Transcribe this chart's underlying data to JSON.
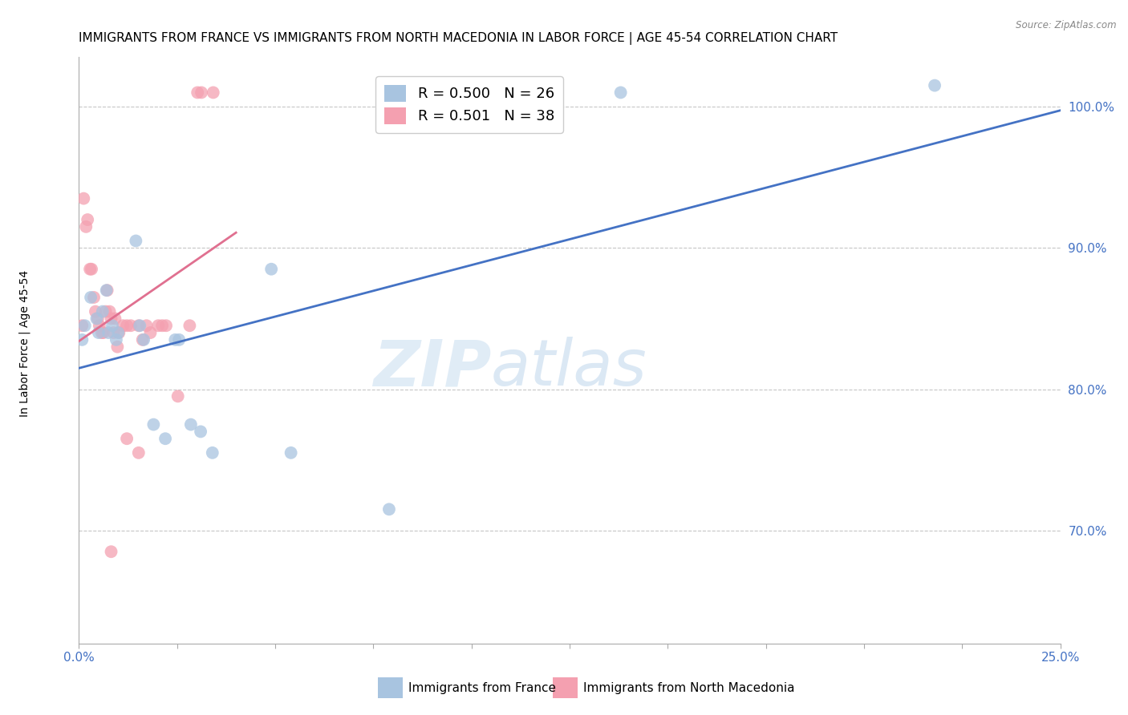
{
  "title": "IMMIGRANTS FROM FRANCE VS IMMIGRANTS FROM NORTH MACEDONIA IN LABOR FORCE | AGE 45-54 CORRELATION CHART",
  "source": "Source: ZipAtlas.com",
  "ylabel": "In Labor Force | Age 45-54",
  "xlim": [
    0.0,
    25.0
  ],
  "ylim": [
    62.0,
    103.5
  ],
  "r_france": 0.5,
  "n_france": 26,
  "r_macedonia": 0.501,
  "n_macedonia": 38,
  "france_color": "#a8c4e0",
  "macedonia_color": "#f4a0b0",
  "france_line_color": "#4472c4",
  "macedonia_line_color": "#e07090",
  "watermark_zip": "ZIP",
  "watermark_atlas": "atlas",
  "france_points": [
    [
      0.15,
      84.5
    ],
    [
      0.3,
      86.5
    ],
    [
      0.45,
      85.0
    ],
    [
      0.5,
      84.0
    ],
    [
      0.6,
      85.5
    ],
    [
      0.7,
      87.0
    ],
    [
      0.75,
      84.0
    ],
    [
      0.85,
      84.5
    ],
    [
      0.95,
      83.5
    ],
    [
      1.0,
      84.0
    ],
    [
      1.45,
      90.5
    ],
    [
      1.55,
      84.5
    ],
    [
      1.65,
      83.5
    ],
    [
      1.9,
      77.5
    ],
    [
      2.2,
      76.5
    ],
    [
      2.45,
      83.5
    ],
    [
      2.55,
      83.5
    ],
    [
      2.85,
      77.5
    ],
    [
      3.1,
      77.0
    ],
    [
      3.4,
      75.5
    ],
    [
      4.9,
      88.5
    ],
    [
      5.4,
      75.5
    ],
    [
      7.9,
      71.5
    ],
    [
      13.8,
      101.0
    ],
    [
      21.8,
      101.5
    ],
    [
      0.08,
      83.5
    ]
  ],
  "macedonia_points": [
    [
      0.08,
      84.5
    ],
    [
      0.12,
      93.5
    ],
    [
      0.18,
      91.5
    ],
    [
      0.22,
      92.0
    ],
    [
      0.28,
      88.5
    ],
    [
      0.32,
      88.5
    ],
    [
      0.38,
      86.5
    ],
    [
      0.42,
      85.5
    ],
    [
      0.48,
      85.0
    ],
    [
      0.52,
      84.5
    ],
    [
      0.58,
      84.0
    ],
    [
      0.62,
      84.0
    ],
    [
      0.68,
      85.5
    ],
    [
      0.72,
      87.0
    ],
    [
      0.78,
      85.5
    ],
    [
      0.82,
      85.0
    ],
    [
      0.88,
      84.0
    ],
    [
      0.92,
      85.0
    ],
    [
      0.98,
      83.0
    ],
    [
      1.02,
      84.0
    ],
    [
      1.12,
      84.5
    ],
    [
      1.22,
      84.5
    ],
    [
      1.32,
      84.5
    ],
    [
      1.52,
      84.5
    ],
    [
      1.62,
      83.5
    ],
    [
      1.72,
      84.5
    ],
    [
      1.82,
      84.0
    ],
    [
      2.02,
      84.5
    ],
    [
      2.12,
      84.5
    ],
    [
      2.22,
      84.5
    ],
    [
      2.52,
      79.5
    ],
    [
      2.82,
      84.5
    ],
    [
      3.02,
      101.0
    ],
    [
      3.12,
      101.0
    ],
    [
      3.42,
      101.0
    ],
    [
      1.22,
      76.5
    ],
    [
      1.52,
      75.5
    ],
    [
      0.82,
      68.5
    ]
  ],
  "background_color": "#ffffff",
  "axis_color": "#4472c4",
  "grid_color": "#c0c0c0",
  "title_fontsize": 11,
  "label_fontsize": 10,
  "tick_fontsize": 11,
  "legend_fontsize": 13
}
